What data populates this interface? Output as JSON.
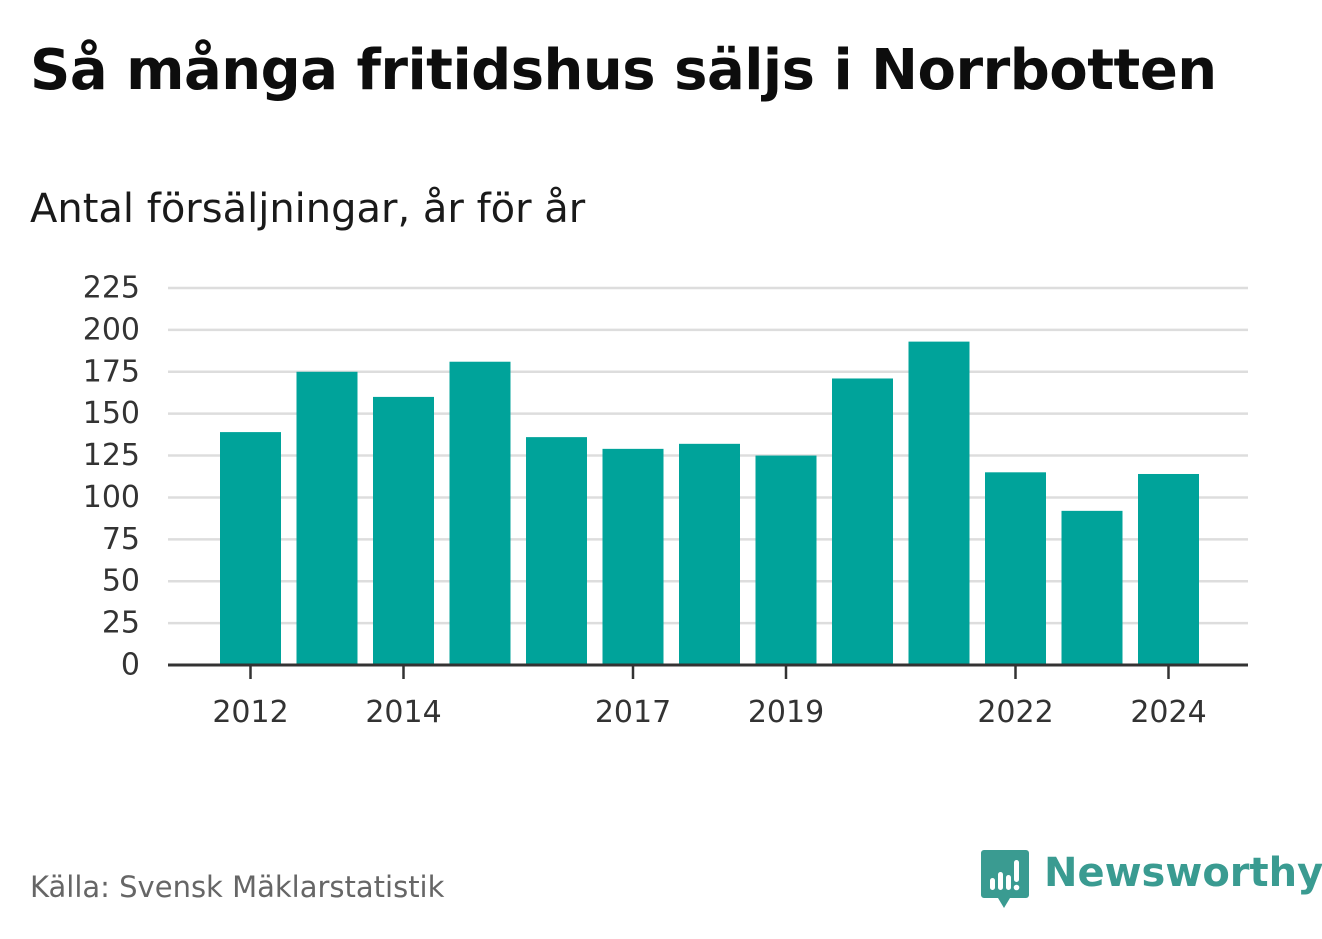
{
  "header": {
    "title": "Så många fritidshus säljs i Norrbotten",
    "subtitle": "Antal försäljningar, år för år"
  },
  "footer": {
    "source": "Källa: Svensk Mäklarstatistik",
    "brand": "Newsworthy"
  },
  "colors": {
    "bar": "#00a39a",
    "grid": "#dddddd",
    "axis": "#333333",
    "brand": "#3a9b91"
  },
  "chart_data": {
    "type": "bar",
    "categories": [
      "2012",
      "2013",
      "2014",
      "2015",
      "2016",
      "2017",
      "2018",
      "2019",
      "2020",
      "2021",
      "2022",
      "2023",
      "2024"
    ],
    "values": [
      139,
      175,
      160,
      181,
      136,
      129,
      132,
      125,
      171,
      193,
      115,
      92,
      114
    ],
    "tick_labels_x": [
      "2012",
      "2014",
      "2017",
      "2019",
      "2022",
      "2024"
    ],
    "y_ticks": [
      0,
      25,
      50,
      75,
      100,
      125,
      150,
      175,
      200,
      225
    ],
    "ylim": [
      0,
      225
    ],
    "grid": true,
    "legend": false
  }
}
